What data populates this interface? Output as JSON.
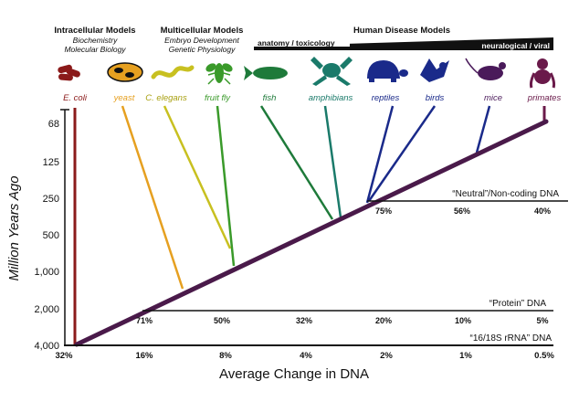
{
  "headers": {
    "intracellular": {
      "title": "Intracellular Models",
      "sub1": "Biochemistry",
      "sub2": "Molecular Biology"
    },
    "multicellular": {
      "title": "Multicellular Models",
      "sub1": "Embryo Development",
      "sub2": "Genetic Physiology"
    },
    "human": {
      "title": "Human Disease Models",
      "band_left": "anatomy / toxicology",
      "band_right": "neuralogical / viral"
    }
  },
  "organisms": [
    {
      "label": "E. coli",
      "color": "#8b1a1a",
      "icon": "bacteria-icon"
    },
    {
      "label": "yeast",
      "color": "#e6a020",
      "icon": "yeast-icon"
    },
    {
      "label": "C. elegans",
      "color": "#c8c020",
      "icon": "worm-icon"
    },
    {
      "label": "fruit fly",
      "color": "#3a9a2a",
      "icon": "fly-icon"
    },
    {
      "label": "fish",
      "color": "#1e7a3a",
      "icon": "fish-icon"
    },
    {
      "label": "amphibians",
      "color": "#1a7a6a",
      "icon": "frog-icon"
    },
    {
      "label": "reptiles",
      "color": "#1a2a8a",
      "icon": "turtle-icon"
    },
    {
      "label": "birds",
      "color": "#1a2a8a",
      "icon": "bird-icon"
    },
    {
      "label": "mice",
      "color": "#4a1a5a",
      "icon": "mouse-icon"
    },
    {
      "label": "primates",
      "color": "#6a1a4a",
      "icon": "primate-icon"
    }
  ],
  "axes": {
    "y_label": "Million Years Ago",
    "y_ticks": [
      "68",
      "125",
      "250",
      "500",
      "1,000",
      "2,000",
      "4,000"
    ],
    "x_label": "Average Change in DNA",
    "x_ticks": [
      "32%",
      "16%",
      "8%",
      "4%",
      "2%",
      "1%",
      "0.5%"
    ]
  },
  "dna_scales": {
    "neutral": {
      "label": "“Neutral”/Non-coding DNA",
      "ticks": [
        "75%",
        "56%",
        "40%"
      ]
    },
    "protein": {
      "label": "“Protein” DNA",
      "ticks": [
        "71%",
        "50%",
        "32%",
        "20%",
        "10%",
        "5%"
      ]
    },
    "rrna": {
      "label": "“16/18S rRNA” DNA"
    }
  },
  "colors": {
    "main_line": "#4a1a4a",
    "axis": "#111111"
  }
}
